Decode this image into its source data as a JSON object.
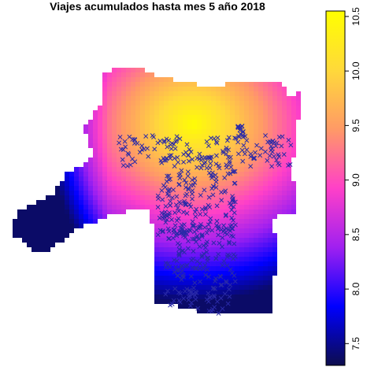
{
  "chart_data": {
    "type": "heatmap",
    "title": "Viajes acumulados hasta mes 5 año 2018",
    "xlabel": "",
    "ylabel": "",
    "grid": false,
    "legend": "colorbar-right",
    "colorbar": {
      "range": [
        7.3,
        10.55
      ],
      "ticks": [
        7.5,
        8.0,
        8.5,
        9.0,
        9.5,
        10.0,
        10.5
      ],
      "tick_labels": [
        "7.5",
        "8.0",
        "8.5",
        "9.0",
        "9.5",
        "10.0",
        "10.5"
      ],
      "palette": [
        "#0d0d4d",
        "#0000ff",
        "#a020f0",
        "#ff40c8",
        "#ff9a66",
        "#ffd93a",
        "#ffff00"
      ]
    },
    "surface": {
      "peak_value": 10.5,
      "peak_location": "upper-center",
      "min_value": 7.4,
      "min_location": "far-left tip"
    },
    "points": {
      "marker": "x",
      "color": "#2a2aa8",
      "description_count": 650
    }
  }
}
